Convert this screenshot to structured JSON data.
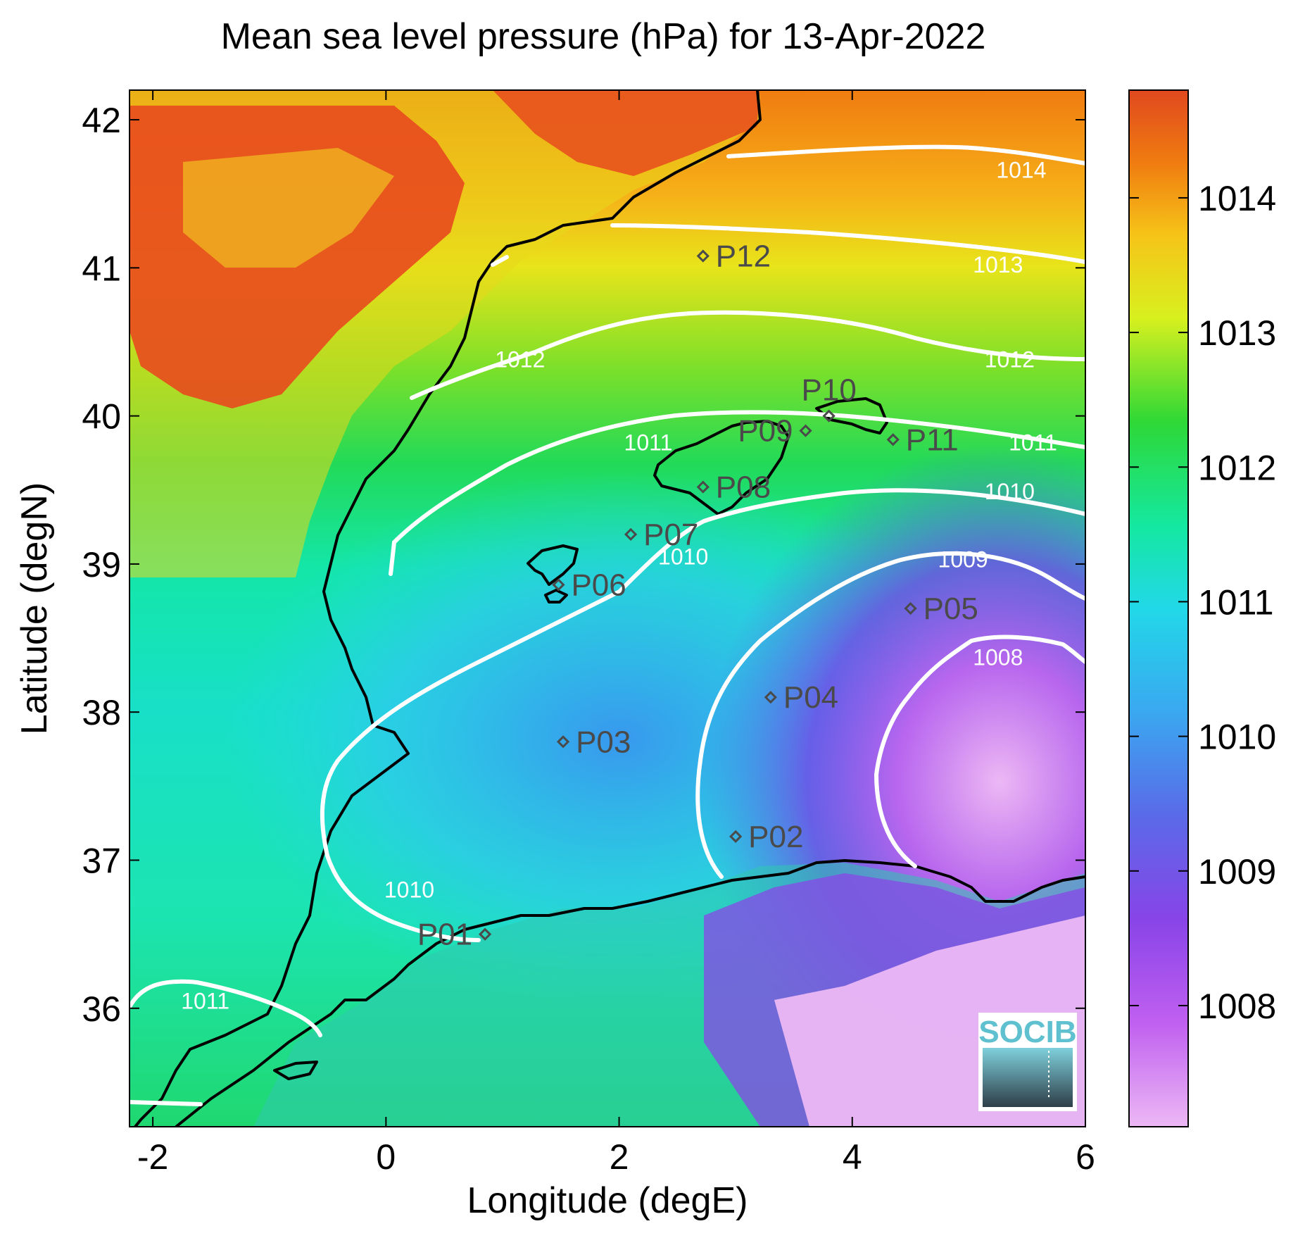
{
  "title": "Mean sea level pressure (hPa) for 13-Apr-2022",
  "xlabel": "Longitude (degE)",
  "ylabel": "Latitude (degN)",
  "x_ticks": [
    "-2",
    "0",
    "2",
    "4",
    "6"
  ],
  "y_ticks": [
    "42",
    "41",
    "40",
    "39",
    "38",
    "37",
    "36"
  ],
  "colorbar": {
    "ticks": [
      "1014",
      "1013",
      "1012",
      "1011",
      "1010",
      "1009",
      "1008"
    ],
    "colors": [
      "#e84a1e",
      "#f07c10",
      "#f6c418",
      "#d8f01e",
      "#2ed836",
      "#14e8a0",
      "#22d8e8",
      "#3aa8f0",
      "#5a6ae8",
      "#7a3ce8",
      "#b44cf0",
      "#ecb8f4"
    ]
  },
  "chart_data": {
    "type": "heatmap",
    "variable": "Mean sea level pressure (hPa)",
    "xlim": [
      -2.2,
      6
    ],
    "ylim": [
      35.2,
      42.2
    ],
    "clim": [
      1007.1,
      1014.8
    ],
    "contour_levels": [
      1008,
      1009,
      1010,
      1011,
      1012,
      1013,
      1014
    ],
    "contour_labels": [
      {
        "text": "1014",
        "lon": 5.45,
        "lat": 41.66
      },
      {
        "text": "1013",
        "lon": 5.25,
        "lat": 41.02
      },
      {
        "text": "1012",
        "lon": 1.15,
        "lat": 40.38
      },
      {
        "text": "1012",
        "lon": 5.35,
        "lat": 40.38
      },
      {
        "text": "1011",
        "lon": 2.25,
        "lat": 39.82
      },
      {
        "text": "1011",
        "lon": 5.55,
        "lat": 39.82
      },
      {
        "text": "1010",
        "lon": 5.35,
        "lat": 39.49
      },
      {
        "text": "1010",
        "lon": 2.55,
        "lat": 39.05
      },
      {
        "text": "1009",
        "lon": 4.95,
        "lat": 39.03
      },
      {
        "text": "1008",
        "lon": 5.25,
        "lat": 38.37
      },
      {
        "text": "1010",
        "lon": 0.2,
        "lat": 36.8
      },
      {
        "text": "1011",
        "lon": -1.55,
        "lat": 36.05
      }
    ],
    "sites": [
      {
        "name": "P01",
        "lon": 0.85,
        "lat": 36.5
      },
      {
        "name": "P02",
        "lon": 3.0,
        "lat": 37.16
      },
      {
        "name": "P03",
        "lon": 1.52,
        "lat": 37.8
      },
      {
        "name": "P04",
        "lon": 3.3,
        "lat": 38.1
      },
      {
        "name": "P05",
        "lon": 4.5,
        "lat": 38.7
      },
      {
        "name": "P06",
        "lon": 1.48,
        "lat": 38.86
      },
      {
        "name": "P07",
        "lon": 2.1,
        "lat": 39.2
      },
      {
        "name": "P08",
        "lon": 2.72,
        "lat": 39.52
      },
      {
        "name": "P09",
        "lon": 3.6,
        "lat": 39.9
      },
      {
        "name": "P10",
        "lon": 3.8,
        "lat": 40.0
      },
      {
        "name": "P11",
        "lon": 4.35,
        "lat": 39.84
      },
      {
        "name": "P12",
        "lon": 2.72,
        "lat": 41.08
      }
    ]
  },
  "logo": {
    "text": "SOCIB"
  }
}
